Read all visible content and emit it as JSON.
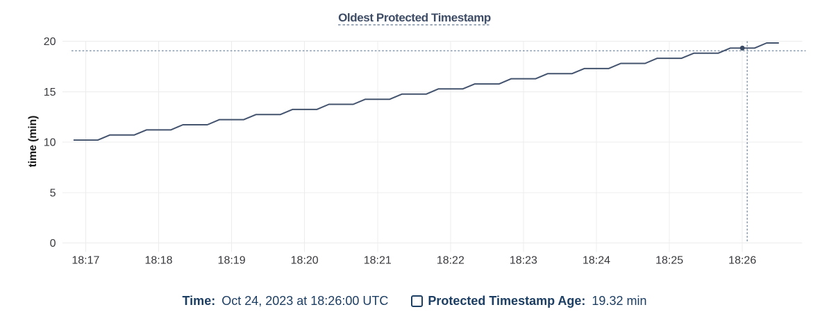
{
  "chart": {
    "title": "Oldest Protected Timestamp"
  },
  "chart_data": {
    "type": "line",
    "title": "Oldest Protected Timestamp",
    "xlabel": "",
    "ylabel": "time (min)",
    "ylim": [
      0,
      20
    ],
    "y_ticks": [
      0,
      5,
      10,
      15,
      20
    ],
    "x_ticks": [
      "18:17",
      "18:18",
      "18:19",
      "18:20",
      "18:21",
      "18:22",
      "18:23",
      "18:24",
      "18:25",
      "18:26"
    ],
    "grid": true,
    "legend_position": "bottom",
    "series": [
      {
        "name": "Protected Timestamp Age",
        "unit": "min",
        "color": "#43536e",
        "times": [
          "18:16:50",
          "18:17:00",
          "18:17:10",
          "18:17:20",
          "18:17:30",
          "18:17:40",
          "18:17:50",
          "18:18:00",
          "18:18:10",
          "18:18:20",
          "18:18:30",
          "18:18:40",
          "18:18:50",
          "18:19:00",
          "18:19:10",
          "18:19:20",
          "18:19:30",
          "18:19:40",
          "18:19:50",
          "18:20:00",
          "18:20:10",
          "18:20:20",
          "18:20:30",
          "18:20:40",
          "18:20:50",
          "18:21:00",
          "18:21:10",
          "18:21:20",
          "18:21:30",
          "18:21:40",
          "18:21:50",
          "18:22:00",
          "18:22:10",
          "18:22:20",
          "18:22:30",
          "18:22:40",
          "18:22:50",
          "18:23:00",
          "18:23:10",
          "18:23:20",
          "18:23:30",
          "18:23:40",
          "18:23:50",
          "18:24:00",
          "18:24:10",
          "18:24:20",
          "18:24:30",
          "18:24:40",
          "18:24:50",
          "18:25:00",
          "18:25:10",
          "18:25:20",
          "18:25:30",
          "18:25:40",
          "18:25:50",
          "18:26:00",
          "18:26:10",
          "18:26:20",
          "18:26:30"
        ],
        "values": [
          10.2,
          10.2,
          10.2,
          10.71,
          10.71,
          10.71,
          11.21,
          11.21,
          11.21,
          11.72,
          11.72,
          11.72,
          12.23,
          12.23,
          12.23,
          12.73,
          12.73,
          12.73,
          13.24,
          13.24,
          13.24,
          13.75,
          13.75,
          13.75,
          14.25,
          14.25,
          14.25,
          14.76,
          14.76,
          14.76,
          15.27,
          15.27,
          15.27,
          15.77,
          15.77,
          15.77,
          16.28,
          16.28,
          16.28,
          16.79,
          16.79,
          16.79,
          17.29,
          17.29,
          17.29,
          17.8,
          17.8,
          17.8,
          18.31,
          18.31,
          18.31,
          18.81,
          18.81,
          18.81,
          19.32,
          19.32,
          19.32,
          19.83,
          19.83
        ]
      }
    ],
    "cursor": {
      "time": "18:26:04",
      "value": 19.05,
      "snapped_point": {
        "time": "18:26:00",
        "value": 19.32
      }
    }
  },
  "legend": {
    "time_label": "Time:",
    "time_value": "Oct 24, 2023 at 18:26:00 UTC",
    "series_label": "Protected Timestamp Age:",
    "series_value": "19.32 min"
  },
  "colors": {
    "background": "#ffffff",
    "title_text": "#3e4c66",
    "title_underline": "#8596ab",
    "grid": "#ececec",
    "series_line": "#43536e",
    "cursor_dot": "#3a4a63",
    "crosshair": "#7e92aa",
    "tick_text": "#38393d",
    "axis_label_text": "#161616",
    "legend_text": "#1d3e63"
  }
}
